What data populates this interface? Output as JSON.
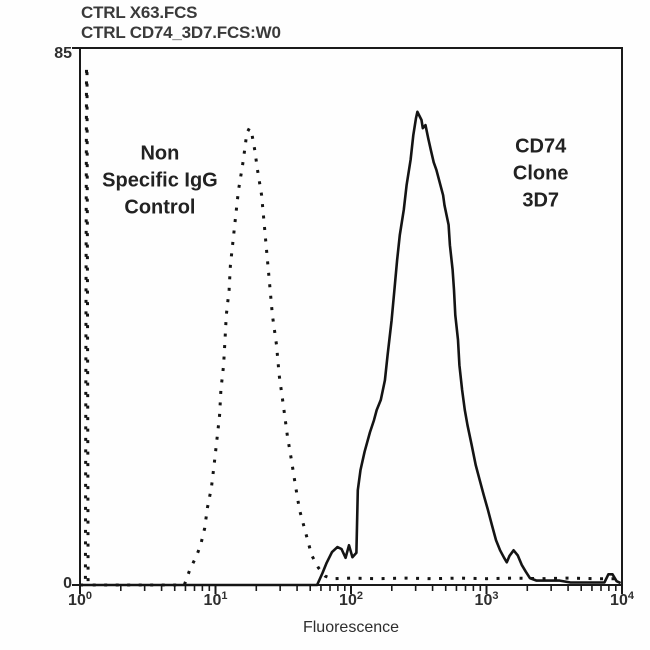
{
  "header": {
    "line1": "CTRL X63.FCS",
    "line2": "CTRL CD74_3D7.FCS:W0"
  },
  "colors": {
    "curve": "#141414",
    "frame": "#1a1a1a",
    "text": "#2e2e2e"
  },
  "chart_data": {
    "type": "line",
    "subtype": "flow-cytometry-histogram-overlay",
    "title": "",
    "xlabel": "Fluorescence",
    "ylabel": "",
    "x_scale": "log10",
    "xlim_log": [
      0,
      4
    ],
    "x_tick_base": "10",
    "x_tick_exponents": [
      "0",
      "1",
      "2",
      "3",
      "4"
    ],
    "minor_ticks_per_decade": [
      2,
      3,
      4,
      5,
      6,
      7,
      8,
      9
    ],
    "ylim": [
      0,
      85
    ],
    "y_tick_labels": [
      "85",
      "0"
    ],
    "y_tick_values": [
      85,
      0
    ],
    "grid": false,
    "legend_position": "none",
    "annotations": [
      {
        "id": "control-label",
        "text": "Non\nSpecific IgG\nControl",
        "x_log": 0.59,
        "y_count": 64
      },
      {
        "id": "cd74-label",
        "text": "CD74 Clone\n3D7",
        "x_log": 3.4,
        "y_count": 65
      }
    ],
    "series": [
      {
        "name": "Non Specific IgG Control",
        "style": "dotted",
        "points_xlog_count": [
          [
            0.0,
            0
          ],
          [
            0.04,
            0
          ],
          [
            0.048,
            82
          ],
          [
            0.052,
            82
          ],
          [
            0.06,
            0
          ],
          [
            0.77,
            0
          ],
          [
            0.81,
            2.4
          ],
          [
            0.86,
            4.6
          ],
          [
            0.89,
            6.3
          ],
          [
            0.92,
            9
          ],
          [
            0.94,
            12.2
          ],
          [
            0.97,
            15.4
          ],
          [
            0.99,
            19
          ],
          [
            1.01,
            23
          ],
          [
            1.03,
            26.9
          ],
          [
            1.04,
            30.9
          ],
          [
            1.06,
            34.8
          ],
          [
            1.07,
            38.8
          ],
          [
            1.08,
            42.7
          ],
          [
            1.1,
            46.7
          ],
          [
            1.11,
            50.6
          ],
          [
            1.13,
            54.6
          ],
          [
            1.15,
            58.6
          ],
          [
            1.17,
            62.5
          ],
          [
            1.2,
            66.5
          ],
          [
            1.22,
            69.6
          ],
          [
            1.23,
            71.5
          ],
          [
            1.25,
            72.3
          ],
          [
            1.27,
            71.2
          ],
          [
            1.29,
            68.8
          ],
          [
            1.31,
            65.7
          ],
          [
            1.34,
            61.7
          ],
          [
            1.36,
            57
          ],
          [
            1.38,
            52.2
          ],
          [
            1.4,
            47.5
          ],
          [
            1.42,
            42.7
          ],
          [
            1.45,
            38
          ],
          [
            1.47,
            33.2
          ],
          [
            1.5,
            28.5
          ],
          [
            1.53,
            23.7
          ],
          [
            1.56,
            19.8
          ],
          [
            1.59,
            15.8
          ],
          [
            1.62,
            11.9
          ],
          [
            1.67,
            7.9
          ],
          [
            1.71,
            4.7
          ],
          [
            1.76,
            2.7
          ],
          [
            1.81,
            1.4
          ],
          [
            1.86,
            1.0
          ],
          [
            2.0,
            1.1
          ],
          [
            2.2,
            1.0
          ],
          [
            2.4,
            1.1
          ],
          [
            2.6,
            1.0
          ],
          [
            2.8,
            1.1
          ],
          [
            3.0,
            1.0
          ],
          [
            3.2,
            1.1
          ],
          [
            3.4,
            1.0
          ],
          [
            3.6,
            1.1
          ],
          [
            3.8,
            1.0
          ],
          [
            3.97,
            1.0
          ]
        ]
      },
      {
        "name": "CD74 Clone 3D7",
        "style": "solid",
        "points_xlog_count": [
          [
            0.0,
            0
          ],
          [
            1.75,
            0
          ],
          [
            1.79,
            1.9
          ],
          [
            1.82,
            3.5
          ],
          [
            1.86,
            5.2
          ],
          [
            1.9,
            6.0
          ],
          [
            1.93,
            5.7
          ],
          [
            1.96,
            4.3
          ],
          [
            1.985,
            6.3
          ],
          [
            2.01,
            4.4
          ],
          [
            2.04,
            5.1
          ],
          [
            2.05,
            15
          ],
          [
            2.07,
            18.2
          ],
          [
            2.1,
            21.1
          ],
          [
            2.14,
            24.2
          ],
          [
            2.17,
            26.1
          ],
          [
            2.19,
            27.7
          ],
          [
            2.22,
            29.3
          ],
          [
            2.25,
            32.4
          ],
          [
            2.27,
            36.4
          ],
          [
            2.3,
            41.9
          ],
          [
            2.32,
            46.7
          ],
          [
            2.34,
            51.4
          ],
          [
            2.36,
            55.4
          ],
          [
            2.39,
            59.4
          ],
          [
            2.41,
            63.3
          ],
          [
            2.44,
            67.3
          ],
          [
            2.46,
            71.2
          ],
          [
            2.48,
            73.9
          ],
          [
            2.49,
            74.9
          ],
          [
            2.52,
            73.6
          ],
          [
            2.53,
            72.3
          ],
          [
            2.55,
            72.8
          ],
          [
            2.57,
            70.7
          ],
          [
            2.59,
            68.8
          ],
          [
            2.61,
            66.9
          ],
          [
            2.63,
            65.7
          ],
          [
            2.66,
            63.3
          ],
          [
            2.68,
            61.7
          ],
          [
            2.69,
            60.1
          ],
          [
            2.72,
            57
          ],
          [
            2.73,
            53.8
          ],
          [
            2.75,
            49.9
          ],
          [
            2.76,
            46.7
          ],
          [
            2.77,
            42.7
          ],
          [
            2.79,
            38.8
          ],
          [
            2.8,
            34.8
          ],
          [
            2.82,
            30.9
          ],
          [
            2.84,
            27.7
          ],
          [
            2.86,
            25.3
          ],
          [
            2.89,
            22.2
          ],
          [
            2.92,
            19
          ],
          [
            2.95,
            16.6
          ],
          [
            2.98,
            14.2
          ],
          [
            3.01,
            11.9
          ],
          [
            3.04,
            9.5
          ],
          [
            3.07,
            7.1
          ],
          [
            3.1,
            5.5
          ],
          [
            3.13,
            4.3
          ],
          [
            3.15,
            3.6
          ],
          [
            3.17,
            4.6
          ],
          [
            3.2,
            5.5
          ],
          [
            3.23,
            4.7
          ],
          [
            3.26,
            3.2
          ],
          [
            3.29,
            2.1
          ],
          [
            3.32,
            1.1
          ],
          [
            3.37,
            0.7
          ],
          [
            3.54,
            0.7
          ],
          [
            3.62,
            0.4
          ],
          [
            3.87,
            0.4
          ],
          [
            3.9,
            1.7
          ],
          [
            3.93,
            1.7
          ],
          [
            3.96,
            0.6
          ],
          [
            3.99,
            0.3
          ]
        ]
      }
    ]
  }
}
